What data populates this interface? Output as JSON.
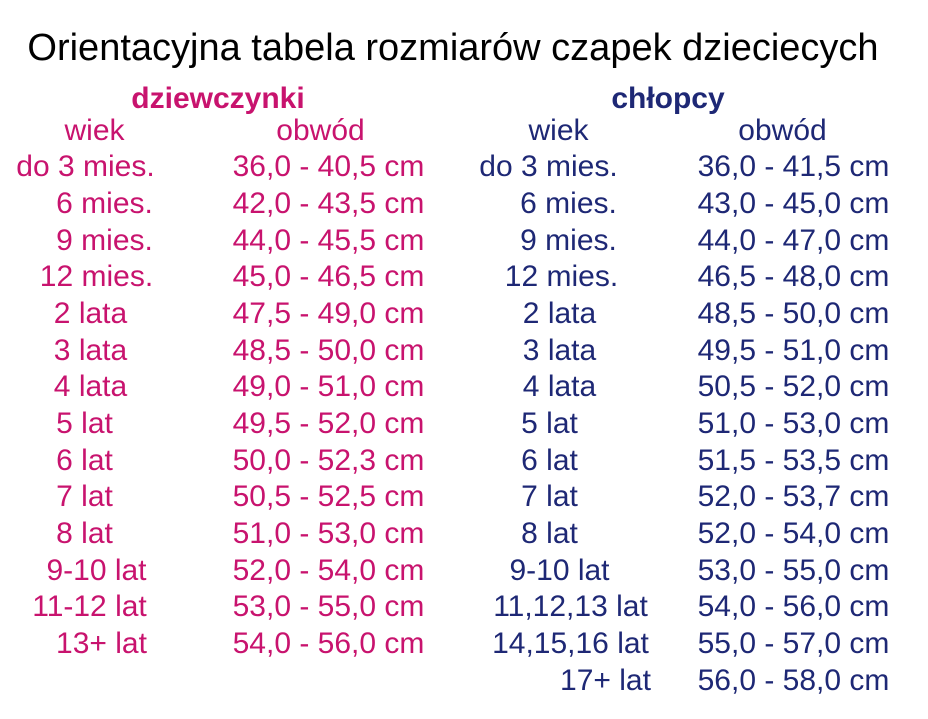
{
  "title": "Orientacyjna tabela rozmiarów czapek dzieciecych",
  "colors": {
    "background": "#FFFFFF",
    "title_text": "#000000",
    "girls_accent": "#C8136E",
    "boys_accent": "#1E2875"
  },
  "chart_data": [
    {
      "type": "table",
      "title": "dziewczynki",
      "columns": [
        "wiek",
        "obwód"
      ],
      "rows": [
        [
          "do 3 mies.",
          "36,0 - 40,5 cm"
        ],
        [
          "6 mies.",
          "42,0 - 43,5 cm"
        ],
        [
          "9 mies.",
          "44,0 - 45,5 cm"
        ],
        [
          "12 mies.",
          "45,0 - 46,5 cm"
        ],
        [
          "2 lata",
          "47,5 - 49,0 cm"
        ],
        [
          "3 lata",
          "48,5 - 50,0 cm"
        ],
        [
          "4 lata",
          "49,0 - 51,0 cm"
        ],
        [
          "5 lat",
          "49,5 - 52,0 cm"
        ],
        [
          "6 lat",
          "50,0 - 52,3 cm"
        ],
        [
          "7 lat",
          "50,5 - 52,5 cm"
        ],
        [
          "8 lat",
          "51,0 - 53,0 cm"
        ],
        [
          "9-10 lat",
          "52,0 - 54,0 cm"
        ],
        [
          "11-12 lat",
          "53,0 - 55,0 cm"
        ],
        [
          "13+ lat",
          "54,0 - 56,0 cm"
        ]
      ]
    },
    {
      "type": "table",
      "title": "chłopcy",
      "columns": [
        "wiek",
        "obwód"
      ],
      "rows": [
        [
          "do 3 mies.",
          "36,0 - 41,5 cm"
        ],
        [
          "6 mies.",
          "43,0 - 45,0 cm"
        ],
        [
          "9 mies.",
          "44,0 - 47,0 cm"
        ],
        [
          "12 mies.",
          "46,5 - 48,0 cm"
        ],
        [
          "2 lata",
          "48,5 - 50,0 cm"
        ],
        [
          "3 lata",
          "49,5 - 51,0 cm"
        ],
        [
          "4 lata",
          "50,5 - 52,0 cm"
        ],
        [
          "5 lat",
          "51,0 - 53,0 cm"
        ],
        [
          "6 lat",
          "51,5 - 53,5 cm"
        ],
        [
          "7 lat",
          "52,0 - 53,7 cm"
        ],
        [
          "8 lat",
          "52,0 - 54,0 cm"
        ],
        [
          "9-10 lat",
          "53,0 - 55,0 cm"
        ],
        [
          "11,12,13 lat",
          "54,0 - 56,0 cm"
        ],
        [
          "14,15,16 lat",
          "55,0 - 57,0 cm"
        ],
        [
          "17+ lat",
          "56,0 - 58,0 cm"
        ]
      ]
    }
  ]
}
